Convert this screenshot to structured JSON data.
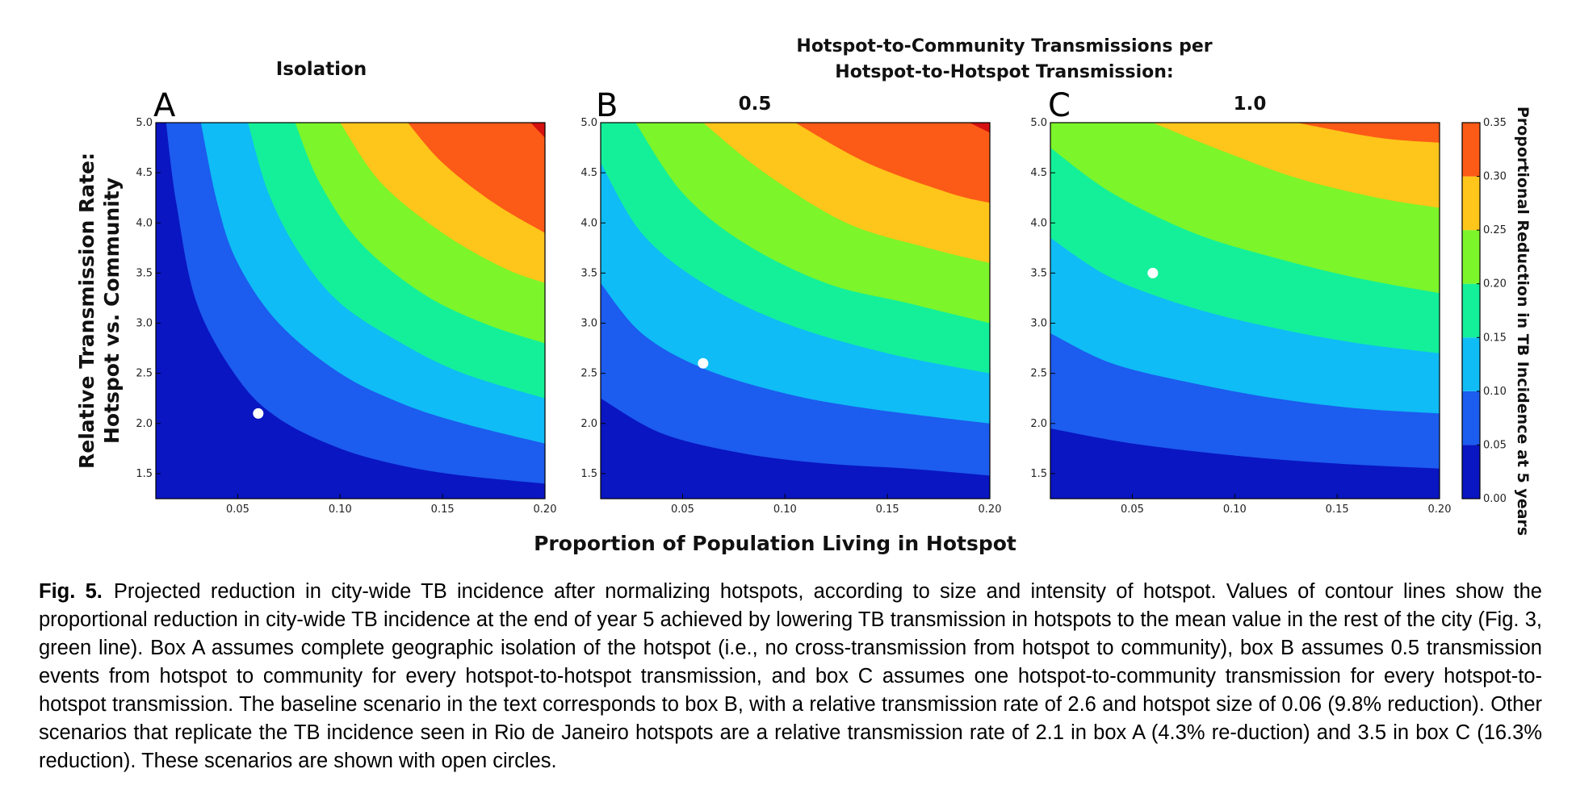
{
  "figure": {
    "header_line1": "Hotspot-to-Community Transmissions per",
    "header_line2": "Hotspot-to-Hotspot Transmission:",
    "x_axis_label": "Proportion of Population Living in Hotspot",
    "y_axis_label_line1": "Relative Transmission Rate:",
    "y_axis_label_line2": "Hotspot vs. Community",
    "colorbar_label": "Proportional Reduction in TB Incidence at 5 years",
    "colors": [
      "#0a16c2",
      "#1c5cee",
      "#0fbcf5",
      "#14f09a",
      "#7cf52a",
      "#fec51a",
      "#fc5a17",
      "#d41010"
    ]
  },
  "chart_data": {
    "type": "contour",
    "xlim": [
      0.01,
      0.2
    ],
    "ylim": [
      1.25,
      5.0
    ],
    "x_ticks": [
      "0.05",
      "0.10",
      "0.15",
      "0.20"
    ],
    "x_tick_values": [
      0.05,
      0.1,
      0.15,
      0.2
    ],
    "y_ticks": [
      "1.5",
      "2.0",
      "2.5",
      "3.0",
      "3.5",
      "4.0",
      "4.5",
      "5.0"
    ],
    "y_tick_values": [
      1.5,
      2.0,
      2.5,
      3.0,
      3.5,
      4.0,
      4.5,
      5.0
    ],
    "levels": [
      0.0,
      0.05,
      0.1,
      0.15,
      0.2,
      0.25,
      0.3,
      0.35
    ],
    "colorbar_ticks": [
      "0.00",
      "0.05",
      "0.10",
      "0.15",
      "0.20",
      "0.25",
      "0.30",
      "0.35"
    ],
    "panels": [
      {
        "letter": "A",
        "title": "Isolation",
        "points": [
          {
            "x": 0.06,
            "y": 2.1
          }
        ],
        "boundaries": [
          [
            [
              0.015,
              5.0
            ],
            [
              0.02,
              4.2
            ],
            [
              0.03,
              3.2
            ],
            [
              0.05,
              2.45
            ],
            [
              0.07,
              2.05
            ],
            [
              0.1,
              1.75
            ],
            [
              0.13,
              1.58
            ],
            [
              0.16,
              1.48
            ],
            [
              0.2,
              1.4
            ]
          ],
          [
            [
              0.032,
              5.0
            ],
            [
              0.04,
              4.2
            ],
            [
              0.05,
              3.6
            ],
            [
              0.07,
              3.0
            ],
            [
              0.1,
              2.5
            ],
            [
              0.13,
              2.2
            ],
            [
              0.16,
              2.0
            ],
            [
              0.2,
              1.8
            ]
          ],
          [
            [
              0.055,
              5.0
            ],
            [
              0.065,
              4.3
            ],
            [
              0.08,
              3.7
            ],
            [
              0.1,
              3.2
            ],
            [
              0.13,
              2.8
            ],
            [
              0.16,
              2.5
            ],
            [
              0.2,
              2.25
            ]
          ],
          [
            [
              0.078,
              5.0
            ],
            [
              0.09,
              4.4
            ],
            [
              0.11,
              3.8
            ],
            [
              0.14,
              3.3
            ],
            [
              0.17,
              3.0
            ],
            [
              0.2,
              2.8
            ]
          ],
          [
            [
              0.1,
              5.0
            ],
            [
              0.12,
              4.4
            ],
            [
              0.15,
              3.9
            ],
            [
              0.18,
              3.55
            ],
            [
              0.2,
              3.4
            ]
          ],
          [
            [
              0.133,
              5.0
            ],
            [
              0.15,
              4.6
            ],
            [
              0.175,
              4.2
            ],
            [
              0.2,
              3.9
            ]
          ],
          [
            [
              0.193,
              5.0
            ],
            [
              0.2,
              4.85
            ]
          ]
        ]
      },
      {
        "letter": "B",
        "title": "0.5",
        "points": [
          {
            "x": 0.06,
            "y": 2.6
          }
        ],
        "boundaries": [
          [
            [
              0.01,
              2.25
            ],
            [
              0.04,
              1.9
            ],
            [
              0.08,
              1.7
            ],
            [
              0.12,
              1.6
            ],
            [
              0.16,
              1.55
            ],
            [
              0.2,
              1.48
            ]
          ],
          [
            [
              0.01,
              3.4
            ],
            [
              0.03,
              2.9
            ],
            [
              0.06,
              2.55
            ],
            [
              0.1,
              2.3
            ],
            [
              0.14,
              2.15
            ],
            [
              0.2,
              2.0
            ]
          ],
          [
            [
              0.01,
              4.6
            ],
            [
              0.03,
              3.9
            ],
            [
              0.06,
              3.4
            ],
            [
              0.1,
              3.0
            ],
            [
              0.15,
              2.7
            ],
            [
              0.2,
              2.5
            ]
          ],
          [
            [
              0.027,
              5.0
            ],
            [
              0.05,
              4.3
            ],
            [
              0.08,
              3.8
            ],
            [
              0.12,
              3.4
            ],
            [
              0.16,
              3.2
            ],
            [
              0.2,
              3.0
            ]
          ],
          [
            [
              0.06,
              5.0
            ],
            [
              0.09,
              4.5
            ],
            [
              0.13,
              4.0
            ],
            [
              0.17,
              3.75
            ],
            [
              0.2,
              3.6
            ]
          ],
          [
            [
              0.105,
              5.0
            ],
            [
              0.14,
              4.6
            ],
            [
              0.18,
              4.3
            ],
            [
              0.2,
              4.2
            ]
          ],
          [
            [
              0.19,
              5.0
            ],
            [
              0.2,
              4.9
            ]
          ]
        ]
      },
      {
        "letter": "C",
        "title": "1.0",
        "points": [
          {
            "x": 0.06,
            "y": 3.5
          }
        ],
        "boundaries": [
          [
            [
              0.01,
              1.95
            ],
            [
              0.05,
              1.8
            ],
            [
              0.1,
              1.68
            ],
            [
              0.15,
              1.6
            ],
            [
              0.2,
              1.55
            ]
          ],
          [
            [
              0.01,
              2.9
            ],
            [
              0.04,
              2.6
            ],
            [
              0.08,
              2.4
            ],
            [
              0.12,
              2.25
            ],
            [
              0.16,
              2.15
            ],
            [
              0.2,
              2.1
            ]
          ],
          [
            [
              0.01,
              3.85
            ],
            [
              0.04,
              3.45
            ],
            [
              0.08,
              3.15
            ],
            [
              0.12,
              2.95
            ],
            [
              0.16,
              2.8
            ],
            [
              0.2,
              2.7
            ]
          ],
          [
            [
              0.01,
              4.75
            ],
            [
              0.04,
              4.3
            ],
            [
              0.08,
              3.9
            ],
            [
              0.12,
              3.65
            ],
            [
              0.16,
              3.45
            ],
            [
              0.2,
              3.3
            ]
          ],
          [
            [
              0.06,
              5.0
            ],
            [
              0.09,
              4.75
            ],
            [
              0.13,
              4.45
            ],
            [
              0.17,
              4.25
            ],
            [
              0.2,
              4.15
            ]
          ],
          [
            [
              0.13,
              5.0
            ],
            [
              0.17,
              4.85
            ],
            [
              0.2,
              4.8
            ]
          ]
        ]
      }
    ]
  },
  "caption": {
    "label": "Fig. 5.",
    "text": "Projected reduction in city-wide TB incidence after normalizing hotspots, according to size and intensity of hotspot. Values of contour lines show the proportional reduction in city-wide TB incidence at the end of year 5 achieved by lowering TB transmission in hotspots to the mean value in the rest of the city (Fig. 3, green line). Box A assumes complete geographic isolation of the hotspot (i.e., no cross-transmission from hotspot to community), box B assumes 0.5 transmission events from hotspot to community for every hotspot-to-hotspot transmission, and box C assumes one hotspot-to-community transmission for every hotspot-to-hotspot transmission. The baseline scenario in the text corresponds to box B, with a relative transmission rate of 2.6 and hotspot size of 0.06 (9.8% reduction). Other scenarios that replicate the TB incidence seen in Rio de Janeiro hotspots are a relative transmission rate of 2.1 in box A (4.3% re-duction) and 3.5 in box C (16.3% reduction). These scenarios are shown with open circles."
  }
}
